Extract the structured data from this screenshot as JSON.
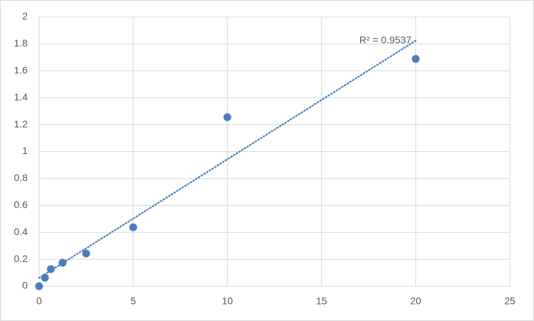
{
  "chart_data": {
    "type": "scatter",
    "x": [
      0,
      0.3125,
      0.625,
      1.25,
      2.5,
      5,
      10,
      20
    ],
    "series": [
      {
        "color": "#4a7ebb",
        "values": [
          0,
          0.063,
          0.127,
          0.174,
          0.243,
          0.438,
          1.256,
          1.689
        ]
      }
    ],
    "trendline": {
      "type": "linear",
      "label": "R² = 0.9537"
    },
    "xlim": [
      0,
      25
    ],
    "xticks": [
      0,
      5,
      10,
      15,
      20,
      25
    ],
    "ylim": [
      0,
      2
    ],
    "yticks": [
      0,
      0.2,
      0.4,
      0.6,
      0.8,
      1,
      1.2,
      1.4,
      1.6,
      1.8,
      2
    ],
    "grid": true
  }
}
